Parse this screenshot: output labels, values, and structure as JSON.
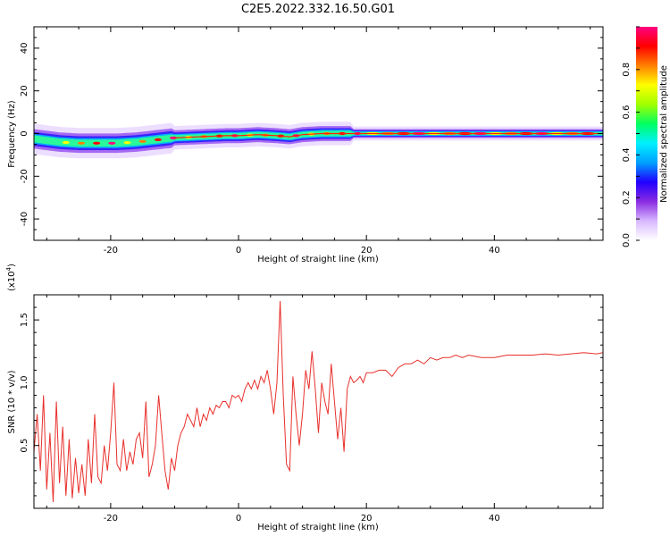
{
  "title": "C2E5.2022.332.16.50.G01",
  "chart_data": [
    {
      "type": "heatmap",
      "xlabel": "Height of straight line (km)",
      "ylabel": "Frequency (Hz)",
      "xlim": [
        -32,
        57
      ],
      "ylim": [
        -50,
        50
      ],
      "xticks": [
        "-20",
        "0",
        "20",
        "40"
      ],
      "yticks": [
        "40",
        "20",
        "0",
        "-20",
        "-40"
      ],
      "colorbar": {
        "label": "Normalized spectral amplitude",
        "range": [
          0,
          1
        ],
        "ticks": [
          "0.0",
          "0.2",
          "0.4",
          "0.6",
          "0.8"
        ],
        "colors": [
          "#ffffff",
          "#d8b8ff",
          "#8a2be2",
          "#2000ff",
          "#00a0ff",
          "#00f0ff",
          "#00ff60",
          "#a0ff00",
          "#ffff00",
          "#ff8000",
          "#ff0000",
          "#ff0080"
        ]
      },
      "ridge": {
        "x": [
          -32,
          -28,
          -25,
          -22,
          -19,
          -16,
          -13,
          -10,
          -6,
          -2,
          0,
          3,
          6,
          8,
          10,
          13,
          16,
          20,
          24,
          30,
          40,
          50,
          56
        ],
        "y": [
          -2.5,
          -4,
          -4.5,
          -4.5,
          -4.5,
          -4,
          -3,
          -2,
          -1.5,
          -1,
          -1,
          -0.5,
          -1,
          -1.5,
          -0.5,
          0,
          0,
          0,
          0,
          0,
          0,
          0,
          0
        ]
      }
    },
    {
      "type": "line",
      "xlabel": "Height of straight line (km)",
      "ylabel": "SNR (10 * v/v)",
      "yscale_label": "(x10",
      "yscale_exp": "4",
      "yscale_close": ")",
      "xlim": [
        -32,
        57
      ],
      "ylim": [
        0,
        1.7
      ],
      "xticks": [
        "-20",
        "0",
        "20",
        "40"
      ],
      "yticks": [
        "0.5",
        "1.0",
        "1.5"
      ],
      "color": "#e8302c",
      "series": [
        {
          "x": [
            -32,
            -31.5,
            -31,
            -30.5,
            -30,
            -29.5,
            -29,
            -28.5,
            -28,
            -27.5,
            -27,
            -26.5,
            -26,
            -25.5,
            -25,
            -24.5,
            -24,
            -23.5,
            -23,
            -22.5,
            -22,
            -21.5,
            -21,
            -20.5,
            -20,
            -19.5,
            -19,
            -18.5,
            -18,
            -17.5,
            -17,
            -16.5,
            -16,
            -15.5,
            -15,
            -14.5,
            -14,
            -13.5,
            -13,
            -12.5,
            -12,
            -11.5,
            -11,
            -10.5,
            -10,
            -9.5,
            -9,
            -8.5,
            -8,
            -7.5,
            -7,
            -6.5,
            -6,
            -5.5,
            -5,
            -4.5,
            -4,
            -3.5,
            -3,
            -2.5,
            -2,
            -1.5,
            -1,
            -0.5,
            0,
            0.5,
            1,
            1.5,
            2,
            2.5,
            3,
            3.5,
            4,
            4.5,
            5,
            5.5,
            6,
            6.5,
            7,
            7.5,
            8,
            8.5,
            9,
            9.5,
            10,
            10.5,
            11,
            11.5,
            12,
            12.5,
            13,
            13.5,
            14,
            14.5,
            15,
            15.5,
            16,
            16.5,
            17,
            17.5,
            18,
            18.5,
            19,
            19.5,
            20,
            21,
            22,
            23,
            24,
            25,
            26,
            27,
            28,
            29,
            30,
            31,
            32,
            33,
            34,
            35,
            36,
            38,
            40,
            42,
            44,
            46,
            48,
            50,
            52,
            54,
            56,
            57
          ],
          "y": [
            0.45,
            0.75,
            0.3,
            0.9,
            0.15,
            0.6,
            0.05,
            0.85,
            0.2,
            0.65,
            0.1,
            0.55,
            0.08,
            0.4,
            0.12,
            0.35,
            0.1,
            0.55,
            0.2,
            0.75,
            0.25,
            0.2,
            0.5,
            0.3,
            0.6,
            1.0,
            0.35,
            0.3,
            0.55,
            0.3,
            0.45,
            0.35,
            0.55,
            0.6,
            0.4,
            0.85,
            0.25,
            0.35,
            0.5,
            0.9,
            0.6,
            0.3,
            0.15,
            0.4,
            0.3,
            0.5,
            0.6,
            0.65,
            0.75,
            0.7,
            0.65,
            0.8,
            0.65,
            0.75,
            0.7,
            0.8,
            0.75,
            0.82,
            0.8,
            0.85,
            0.85,
            0.8,
            0.9,
            0.88,
            0.9,
            0.85,
            0.95,
            1.0,
            0.95,
            1.02,
            0.95,
            1.05,
            1.0,
            1.1,
            0.95,
            0.75,
            1.0,
            1.65,
            0.9,
            0.35,
            0.3,
            1.05,
            0.75,
            0.5,
            0.75,
            1.1,
            0.95,
            1.25,
            0.95,
            0.6,
            1.0,
            0.85,
            0.75,
            1.15,
            0.85,
            0.55,
            0.8,
            0.45,
            0.95,
            1.05,
            1.0,
            1.02,
            1.05,
            1.0,
            1.08,
            1.08,
            1.1,
            1.1,
            1.05,
            1.12,
            1.15,
            1.15,
            1.18,
            1.15,
            1.2,
            1.18,
            1.2,
            1.2,
            1.22,
            1.2,
            1.22,
            1.2,
            1.2,
            1.22,
            1.22,
            1.22,
            1.23,
            1.22,
            1.23,
            1.24,
            1.23,
            1.24
          ]
        }
      ]
    }
  ]
}
